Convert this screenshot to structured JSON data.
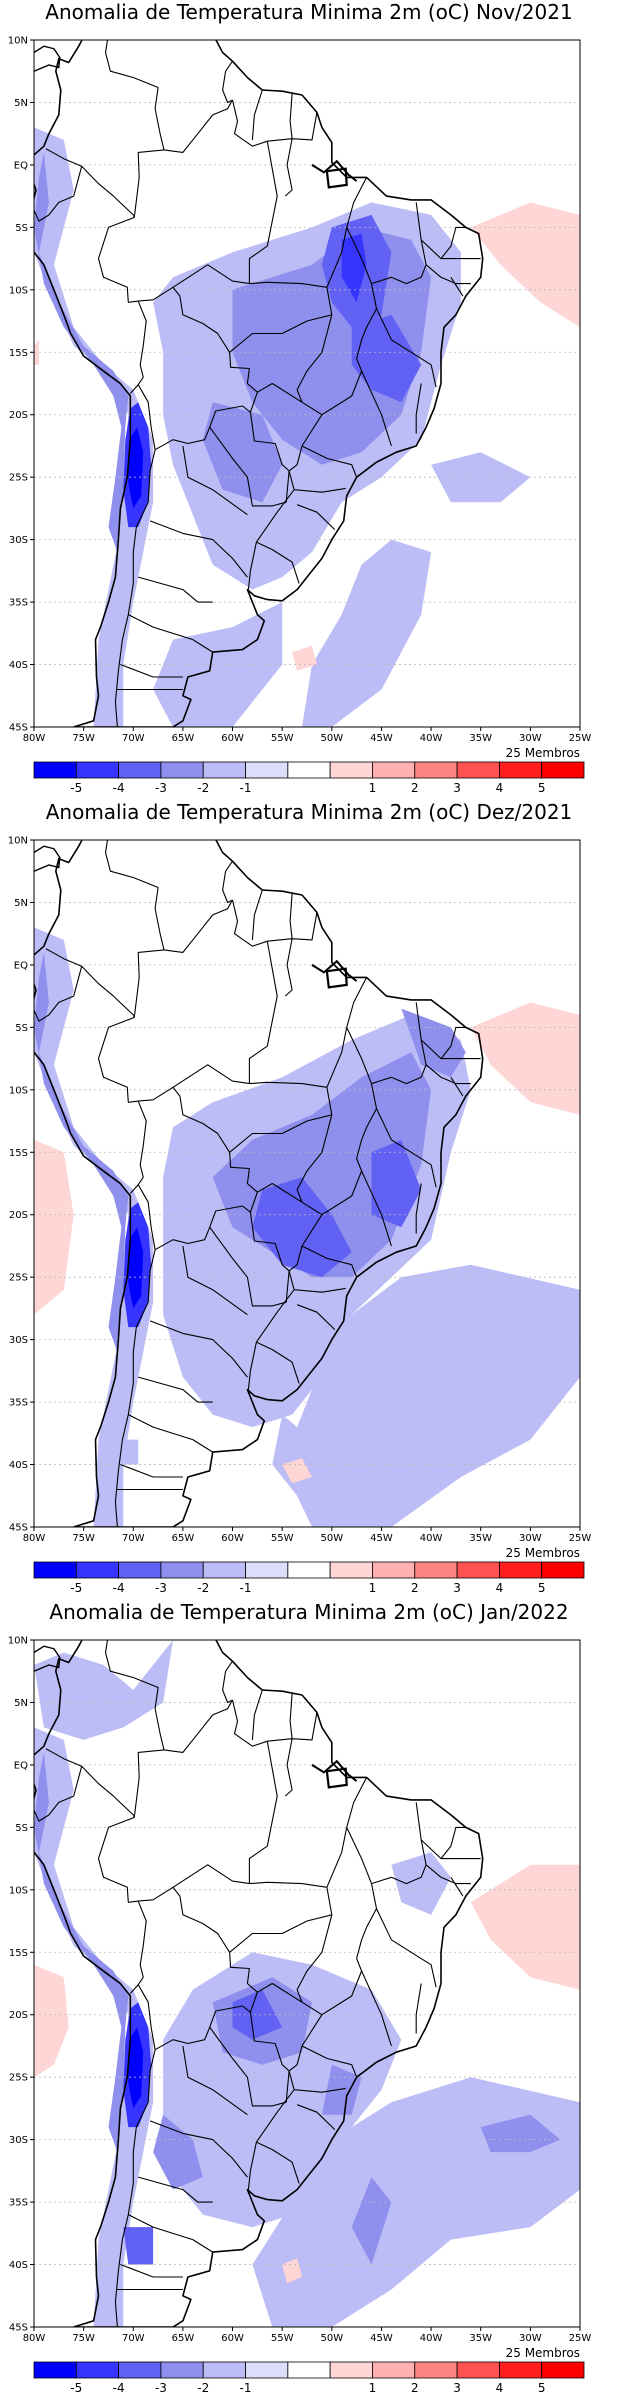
{
  "panels": [
    {
      "id": "nov",
      "title": "Anomalia de Temperatura Minima 2m (oC) Nov/2021",
      "members_label": "25 Membros"
    },
    {
      "id": "dez",
      "title": "Anomalia de Temperatura Minima 2m (oC) Dez/2021",
      "members_label": "25 Membros"
    },
    {
      "id": "jan",
      "title": "Anomalia de Temperatura Minima 2m (oC) Jan/2022",
      "members_label": "25 Membros"
    }
  ],
  "map": {
    "lat_labels": [
      "10N",
      "5N",
      "EQ",
      "5S",
      "10S",
      "15S",
      "20S",
      "25S",
      "30S",
      "35S",
      "40S",
      "45S"
    ],
    "lon_labels": [
      "80W",
      "75W",
      "70W",
      "65W",
      "60W",
      "55W",
      "50W",
      "45W",
      "40W",
      "35W",
      "30W",
      "25W"
    ],
    "ocean_color": "#ffffff",
    "border_color": "#000000",
    "grid_color": "#bbbbbb"
  },
  "colorbar": {
    "labels": [
      "-5",
      "-4",
      "-3",
      "-2",
      "-1",
      "1",
      "2",
      "3",
      "4",
      "5"
    ],
    "colors": [
      "#0000ff",
      "#3535ff",
      "#6161f3",
      "#8f8fee",
      "#bcbcf7",
      "#dcdcfb",
      "#ffffff",
      "#ffd6d6",
      "#ffb0b0",
      "#ff8585",
      "#ff5353",
      "#ff1e1e",
      "#ff0000"
    ]
  }
}
